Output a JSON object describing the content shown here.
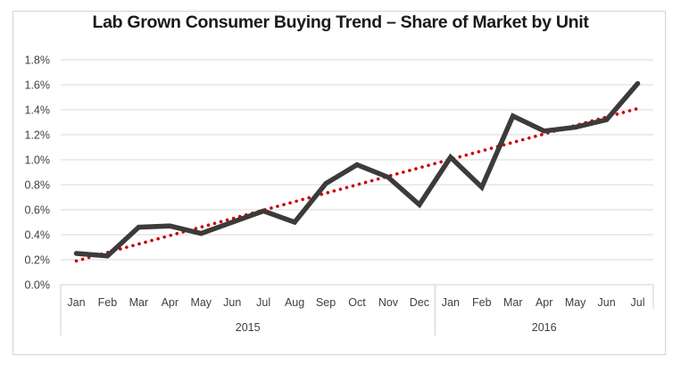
{
  "chart_data": {
    "type": "line",
    "title": "Lab Grown Consumer Buying Trend – Share of Market by Unit",
    "xlabel": "",
    "ylabel": "",
    "ylim": [
      0,
      1.8
    ],
    "y_ticks": [
      "0.0%",
      "0.2%",
      "0.4%",
      "0.6%",
      "0.8%",
      "1.0%",
      "1.2%",
      "1.4%",
      "1.6%",
      "1.8%"
    ],
    "y_tick_values": [
      0,
      0.2,
      0.4,
      0.6,
      0.8,
      1.0,
      1.2,
      1.4,
      1.6,
      1.8
    ],
    "grid": true,
    "categories": [
      "Jan",
      "Feb",
      "Mar",
      "Apr",
      "May",
      "Jun",
      "Jul",
      "Aug",
      "Sep",
      "Oct",
      "Nov",
      "Dec",
      "Jan",
      "Feb",
      "Mar",
      "Apr",
      "May",
      "Jun",
      "Jul"
    ],
    "groups": [
      {
        "label": "2015",
        "count": 12
      },
      {
        "label": "2016",
        "count": 7
      }
    ],
    "series": [
      {
        "name": "Share of Market by Unit",
        "color": "#3d3a3a",
        "style": "solid",
        "values": [
          0.25,
          0.23,
          0.46,
          0.47,
          0.41,
          0.5,
          0.59,
          0.5,
          0.81,
          0.96,
          0.86,
          0.64,
          1.02,
          0.78,
          1.35,
          1.23,
          1.26,
          1.32,
          1.61
        ]
      },
      {
        "name": "Linear trend",
        "color": "#cc0000",
        "style": "dotted",
        "start": 0.19,
        "end": 1.41
      }
    ],
    "legend": "none"
  }
}
